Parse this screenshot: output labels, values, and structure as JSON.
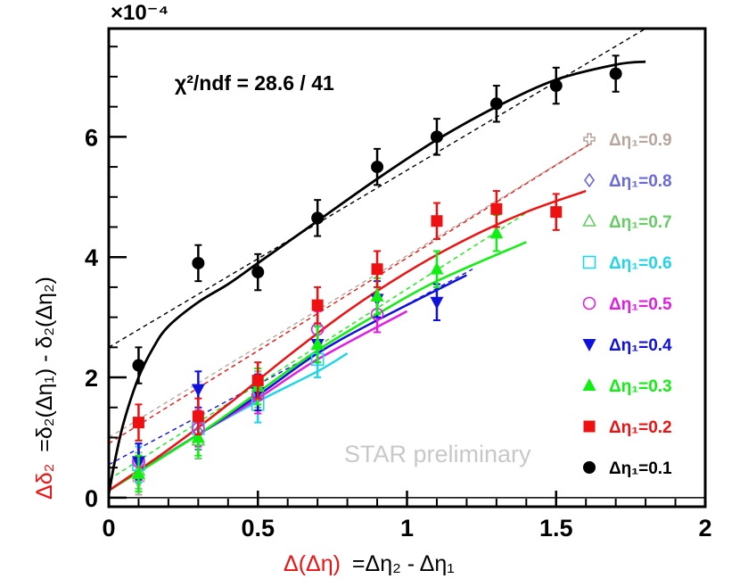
{
  "chart_data": {
    "type": "scatter",
    "title": "",
    "xlabel": {
      "main": "Δ(Δη)",
      "rest": "=Δη₂ - Δη₁"
    },
    "ylabel": {
      "main": "Δδ₂",
      "rest": "=δ₂(Δη₁) - δ₂(Δη₂)"
    },
    "scale_label": "×10⁻⁴",
    "xlim": [
      0,
      2
    ],
    "ylim": [
      -0.15,
      7.8
    ],
    "x_ticks": [
      "0",
      "0.5",
      "1",
      "1.5",
      "2"
    ],
    "x_tick_values": [
      0,
      0.5,
      1,
      1.5,
      2
    ],
    "y_ticks": [
      "0",
      "2",
      "4",
      "6"
    ],
    "y_tick_values": [
      0,
      2,
      4,
      6
    ],
    "fit_text": "χ²/ndf = 28.6 / 41",
    "watermark": "STAR preliminary",
    "series": [
      {
        "name": "Δη₁=0.9",
        "color": "#b7a69d",
        "marker": "cross-open",
        "x": [
          0.1
        ],
        "y": [
          0.3
        ],
        "err": [
          0.25
        ],
        "linear": [
          [
            0,
            1
          ],
          [
            1.62,
            5.9
          ]
        ]
      },
      {
        "name": "Δη₁=0.8",
        "color": "#6a6ad8",
        "marker": "diamond-open",
        "x": [
          0.1,
          0.3,
          0.5
        ],
        "y": [
          0.6,
          1.1,
          1.7
        ],
        "err": [
          0.3,
          0.3,
          0.3
        ]
      },
      {
        "name": "Δη₁=0.7",
        "color": "#66cc66",
        "marker": "triangle-open",
        "x": [
          0.1,
          0.3,
          0.5
        ],
        "y": [
          0.45,
          0.95,
          1.8
        ],
        "err": [
          0.3,
          0.3,
          0.3
        ]
      },
      {
        "name": "Δη₁=0.6",
        "color": "#22d4e8",
        "marker": "square-open",
        "x": [
          0.1,
          0.3,
          0.5,
          0.7
        ],
        "y": [
          0.55,
          1.15,
          1.55,
          2.3
        ],
        "err": [
          0.3,
          0.3,
          0.3,
          0.3
        ],
        "curve": [
          [
            0,
            0.12
          ],
          [
            0.3,
            1.05
          ],
          [
            0.5,
            1.6
          ],
          [
            0.7,
            2.1
          ],
          [
            0.8,
            2.4
          ]
        ]
      },
      {
        "name": "Δη₁=0.5",
        "color": "#e01ee0",
        "marker": "circle-open",
        "x": [
          0.1,
          0.3,
          0.5,
          0.7,
          0.9
        ],
        "y": [
          0.6,
          1.15,
          1.7,
          2.8,
          3.05
        ],
        "err": [
          0.3,
          0.3,
          0.3,
          0.3,
          0.3
        ],
        "curve": [
          [
            0,
            0.12
          ],
          [
            0.3,
            1.05
          ],
          [
            0.5,
            1.65
          ],
          [
            0.7,
            2.3
          ],
          [
            1.0,
            3.1
          ]
        ]
      },
      {
        "name": "Δη₁=0.4",
        "color": "#1111dd",
        "marker": "triangle-down",
        "x": [
          0.1,
          0.3,
          0.5,
          0.7,
          0.9,
          1.1
        ],
        "y": [
          0.6,
          1.8,
          1.75,
          2.55,
          3.3,
          3.25
        ],
        "err": [
          0.3,
          0.3,
          0.3,
          0.3,
          0.3,
          0.3
        ],
        "curve": [
          [
            0,
            0.12
          ],
          [
            0.3,
            1.05
          ],
          [
            0.5,
            1.7
          ],
          [
            0.7,
            2.4
          ],
          [
            0.9,
            2.95
          ],
          [
            1.2,
            3.7
          ]
        ],
        "linear": [
          [
            0,
            0.55
          ],
          [
            1.22,
            3.8
          ]
        ]
      },
      {
        "name": "Δη₁=0.3",
        "color": "#11ee11",
        "marker": "triangle-up",
        "x": [
          0.1,
          0.3,
          0.5,
          0.7,
          0.9,
          1.1,
          1.3
        ],
        "y": [
          0.4,
          1.0,
          1.85,
          2.55,
          3.35,
          3.8,
          4.4
        ],
        "err": [
          0.3,
          0.3,
          0.3,
          0.3,
          0.3,
          0.3,
          0.3
        ],
        "curve": [
          [
            0,
            0.12
          ],
          [
            0.3,
            1.05
          ],
          [
            0.5,
            1.75
          ],
          [
            0.7,
            2.45
          ],
          [
            0.9,
            3.05
          ],
          [
            1.1,
            3.6
          ],
          [
            1.4,
            4.25
          ]
        ],
        "linear": [
          [
            0,
            0.3
          ],
          [
            1.42,
            4.8
          ]
        ]
      },
      {
        "name": "Δη₁=0.2",
        "color": "#ee1111",
        "marker": "square",
        "x": [
          0.1,
          0.3,
          0.5,
          0.7,
          0.9,
          1.1,
          1.3,
          1.5
        ],
        "y": [
          1.25,
          1.35,
          1.95,
          3.2,
          3.8,
          4.6,
          4.8,
          4.75
        ],
        "err": [
          0.3,
          0.3,
          0.3,
          0.3,
          0.3,
          0.3,
          0.3,
          0.3
        ],
        "curve": [
          [
            0,
            0.12
          ],
          [
            0.2,
            0.8
          ],
          [
            0.4,
            1.55
          ],
          [
            0.6,
            2.35
          ],
          [
            0.8,
            3.1
          ],
          [
            1.0,
            3.75
          ],
          [
            1.2,
            4.3
          ],
          [
            1.4,
            4.75
          ],
          [
            1.6,
            5.1
          ]
        ],
        "linear": [
          [
            0,
            0.9
          ],
          [
            1.62,
            5.9
          ]
        ]
      },
      {
        "name": "Δη₁=0.1",
        "color": "#000000",
        "marker": "circle",
        "x": [
          0.1,
          0.3,
          0.5,
          0.7,
          0.9,
          1.1,
          1.3,
          1.5,
          1.7
        ],
        "y": [
          2.2,
          3.9,
          3.75,
          4.65,
          5.5,
          6.0,
          6.55,
          6.85,
          7.05
        ],
        "err": [
          0.3,
          0.3,
          0.3,
          0.3,
          0.3,
          0.3,
          0.3,
          0.3,
          0.3
        ],
        "curve": [
          [
            0,
            0.05
          ],
          [
            0.02,
            0.6
          ],
          [
            0.05,
            1.25
          ],
          [
            0.1,
            2.0
          ],
          [
            0.15,
            2.5
          ],
          [
            0.2,
            2.85
          ],
          [
            0.3,
            3.25
          ],
          [
            0.4,
            3.55
          ],
          [
            0.5,
            3.9
          ],
          [
            0.7,
            4.6
          ],
          [
            0.9,
            5.3
          ],
          [
            1.1,
            5.95
          ],
          [
            1.3,
            6.5
          ],
          [
            1.5,
            6.95
          ],
          [
            1.7,
            7.2
          ],
          [
            1.8,
            7.25
          ]
        ],
        "linear": [
          [
            0,
            2.5
          ],
          [
            1.8,
            7.8
          ]
        ]
      }
    ]
  }
}
